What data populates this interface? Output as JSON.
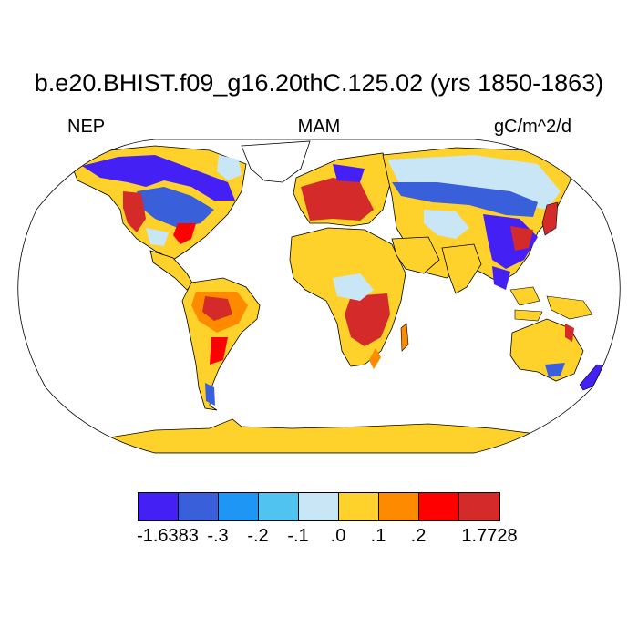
{
  "title": "b.e20.BHIST.f09_g16.20thC.125.02 (yrs 1850-1863)",
  "left_label": "NEP",
  "center_label": "MAM",
  "right_label": "gC/m^2/d",
  "colorbar": {
    "colors": [
      "#4420f5",
      "#3a5fdb",
      "#1e96f5",
      "#50c3f0",
      "#c8e6f5",
      "#fed22a",
      "#fe8a00",
      "#fe0000",
      "#d52a2a"
    ],
    "labels": [
      "-1.6383",
      "-.3",
      "-.2",
      "-.1",
      ".0",
      ".1",
      ".2",
      "1.7728"
    ]
  },
  "map": {
    "projection": "Robinson",
    "ocean_color": "#ffffff",
    "coastline_color": "#000000"
  }
}
